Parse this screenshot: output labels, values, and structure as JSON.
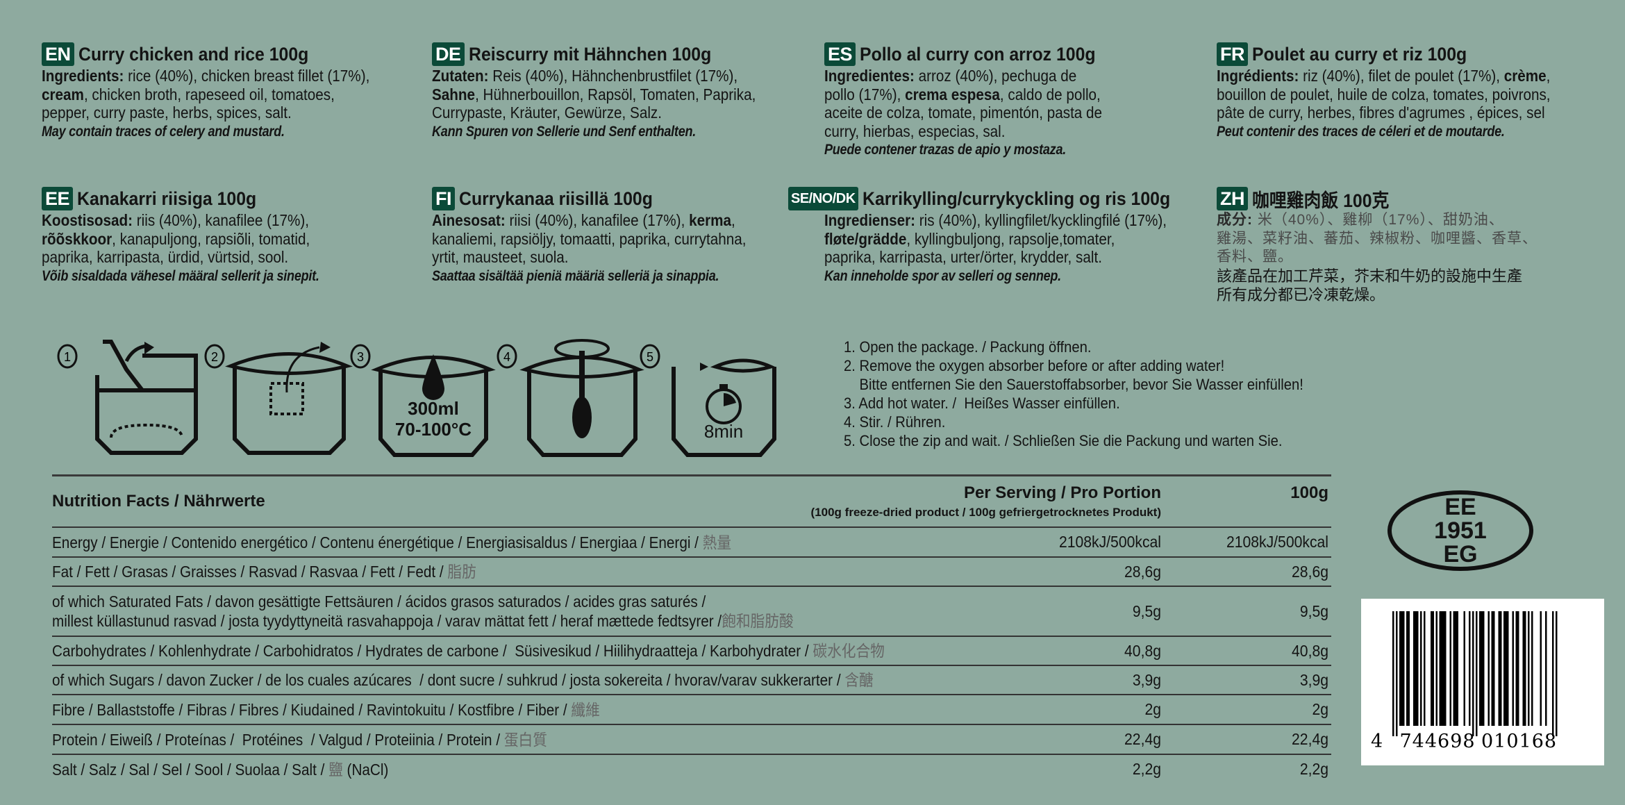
{
  "colors": {
    "background": "#8eaa9f",
    "badge": "#0b4a38"
  },
  "languages": [
    {
      "code": "EN",
      "title": "Curry chicken and rice 100g",
      "lines": [
        [
          {
            "t": "Ingredients:",
            "b": true
          },
          {
            "t": " rice (40%), chicken breast fillet (17%),"
          }
        ],
        [
          {
            "t": "cream",
            "b": true
          },
          {
            "t": ", chicken broth, rapeseed oil, tomatoes,"
          }
        ],
        [
          {
            "t": "pepper, curry paste, herbs, spices, salt."
          }
        ]
      ],
      "allergen": "May contain traces of celery and mustard."
    },
    {
      "code": "DE",
      "title": "Reiscurry mit Hähnchen 100g",
      "lines": [
        [
          {
            "t": "Zutaten:",
            "b": true
          },
          {
            "t": " Reis (40%), Hähnchenbrustfilet (17%),"
          }
        ],
        [
          {
            "t": "Sahne",
            "b": true
          },
          {
            "t": ", Hühnerbouillon, Rapsöl, Tomaten, Paprika,"
          }
        ],
        [
          {
            "t": "Currypaste, Kräuter, Gewürze, Salz."
          }
        ]
      ],
      "allergen": "Kann Spuren von Sellerie und Senf enthalten."
    },
    {
      "code": "ES",
      "title": "Pollo al curry con arroz 100g",
      "lines": [
        [
          {
            "t": "Ingredientes:",
            "b": true
          },
          {
            "t": " arroz (40%), pechuga de"
          }
        ],
        [
          {
            "t": "pollo (17%), "
          },
          {
            "t": "crema espesa",
            "b": true
          },
          {
            "t": ", caldo de pollo,"
          }
        ],
        [
          {
            "t": "aceite de colza, tomate, pimentón, pasta de"
          }
        ],
        [
          {
            "t": "curry, hierbas, especias, sal."
          }
        ]
      ],
      "allergen": "Puede contener trazas de apio y mostaza."
    },
    {
      "code": "FR",
      "title": "Poulet au curry et riz 100g",
      "lines": [
        [
          {
            "t": "Ingrédients:",
            "b": true
          },
          {
            "t": " riz (40%), filet de poulet (17%), "
          },
          {
            "t": "crème",
            "b": true
          },
          {
            "t": ","
          }
        ],
        [
          {
            "t": "bouillon de poulet, huile de colza, tomates, poivrons,"
          }
        ],
        [
          {
            "t": "pâte de curry, herbes, fibres d'agrumes , épices, sel"
          }
        ]
      ],
      "allergen": "Peut contenir des traces de céleri et de moutarde."
    },
    {
      "code": "EE",
      "title": "Kanakarri riisiga 100g",
      "lines": [
        [
          {
            "t": "Koostisosad:",
            "b": true
          },
          {
            "t": " riis (40%), kanafilee (17%),"
          }
        ],
        [
          {
            "t": "rõõskkoor",
            "b": true
          },
          {
            "t": ", kanapuljong, rapsiõli, tomatid,"
          }
        ],
        [
          {
            "t": "paprika, karripasta, ürdid, vürtsid, sool."
          }
        ]
      ],
      "allergen": "Võib sisaldada vähesel määral sellerit ja sinepit."
    },
    {
      "code": "FI",
      "title": "Currykanaa riisillä 100g",
      "lines": [
        [
          {
            "t": "Ainesosat:",
            "b": true
          },
          {
            "t": " riisi (40%), kanafilee (17%), "
          },
          {
            "t": "kerma",
            "b": true
          },
          {
            "t": ","
          }
        ],
        [
          {
            "t": "kanaliemi, rapsiöljy, tomaatti, paprika, currytahna,"
          }
        ],
        [
          {
            "t": "yrtit, mausteet, suola."
          }
        ]
      ],
      "allergen": "Saattaa sisältää pieniä määriä selleriä ja sinappia."
    },
    {
      "code": "SE/NO/DK",
      "title": "Karrikylling/currykyckling og ris 100g",
      "lines": [
        [
          {
            "t": "Ingredienser:",
            "b": true
          },
          {
            "t": " ris (40%), kyllingfilet/kycklingfilé (17%),"
          }
        ],
        [
          {
            "t": "fløte/grädde",
            "b": true
          },
          {
            "t": ", kyllingbuljong, rapsolje,tomater,"
          }
        ],
        [
          {
            "t": "paprika, karripasta, urter/örter, krydder, salt."
          }
        ]
      ],
      "allergen": "Kan inneholde spor av selleri og sennep."
    },
    {
      "code": "ZH",
      "title": "咖哩雞肉飯 100克",
      "lines": [
        [
          {
            "t": "成分:",
            "b": true
          },
          {
            "t": " 米（40%）、雞柳（17%）、甜奶油、"
          }
        ],
        [
          {
            "t": "雞湯、菜籽油、蕃茄、辣椒粉、咖哩醬、香草、"
          }
        ],
        [
          {
            "t": "香料、鹽。"
          }
        ]
      ],
      "notes": [
        "該產品在加工芹菜，芥末和牛奶的設施中生產",
        "所有成分都已冷凍乾燥。"
      ]
    }
  ],
  "preparation": {
    "icon_texts": {
      "water_amount": "300ml",
      "water_temp": "70-100°C",
      "wait_time": "8min"
    },
    "step_numbers": [
      "1",
      "2",
      "3",
      "4",
      "5"
    ],
    "steps": [
      "1. Open the package. / Packung öffnen.",
      "2. Remove the oxygen absorber before or after adding water!",
      "    Bitte entfernen Sie den Sauerstoffabsorber, bevor Sie Wasser einfüllen!",
      "3. Add hot water. /  Heißes Wasser einfüllen.",
      "4. Stir. / Rühren.",
      "5. Close the zip and wait. / Schließen Sie die Packung und warten Sie."
    ]
  },
  "nutrition": {
    "title": "Nutrition Facts / Nährwerte",
    "col1_header": "Per Serving / Pro Portion",
    "col1_sub": "(100g freeze-dried product / 100g gefriergetrocknetes Produkt)",
    "col2_header": "100g",
    "rows": [
      {
        "label": [
          "Energy / Energie / Contenido energético / Contenu énergétique / Energiasisaldus / Energiaa / Energi / "
        ],
        "zh": "熱量",
        "per_serving": "2108kJ/500kcal",
        "per_100g": "2108kJ/500kcal"
      },
      {
        "label": [
          "Fat / Fett / Grasas / Graisses / Rasvad / Rasvaa / Fett / Fedt / "
        ],
        "zh": "脂肪",
        "per_serving": "28,6g",
        "per_100g": "28,6g"
      },
      {
        "label": [
          "of which Saturated Fats / davon gesättigte Fettsäuren / ácidos grasos saturados / acides gras saturés /",
          "millest küllastunud rasvad / josta tyydyttyneitä rasvahappoja / varav mättat fett / heraf mættede fedtsyrer /"
        ],
        "zh": "飽和脂肪酸",
        "per_serving": "9,5g",
        "per_100g": "9,5g"
      },
      {
        "label": [
          "Carbohydrates / Kohlenhydrate / Carbohidratos / Hydrates de carbone /  Süsivesikud / Hiilihydraatteja / Karbohydrater / "
        ],
        "zh": "碳水化合物",
        "per_serving": "40,8g",
        "per_100g": "40,8g"
      },
      {
        "label": [
          "of which Sugars / davon Zucker / de los cuales azúcares  / dont sucre / suhkrud / josta sokereita / hvorav/varav sukkerarter / "
        ],
        "zh": "含醣",
        "per_serving": "3,9g",
        "per_100g": "3,9g"
      },
      {
        "label": [
          "Fibre / Ballaststoffe / Fibras / Fibres / Kiudained / Ravintokuitu / Kostfibre / Fiber / "
        ],
        "zh": "纖維",
        "per_serving": "2g",
        "per_100g": "2g"
      },
      {
        "label": [
          "Protein / Eiweiß / Proteínas /  Protéines  / Valgud / Proteiinia / Protein / "
        ],
        "zh": "蛋白質",
        "per_serving": "22,4g",
        "per_100g": "22,4g"
      },
      {
        "label": [
          "Salt / Salz / Sal / Sel / Sool / Suolaa / Salt / "
        ],
        "zh": "鹽",
        "zh_after": " (NaCl)",
        "per_serving": "2,2g",
        "per_100g": "2,2g"
      }
    ]
  },
  "approval_mark": {
    "lines": [
      "EE",
      "1951",
      "EG"
    ]
  },
  "barcode": {
    "digits": "4744698010168",
    "display": [
      "4",
      "744698",
      "010168"
    ]
  }
}
